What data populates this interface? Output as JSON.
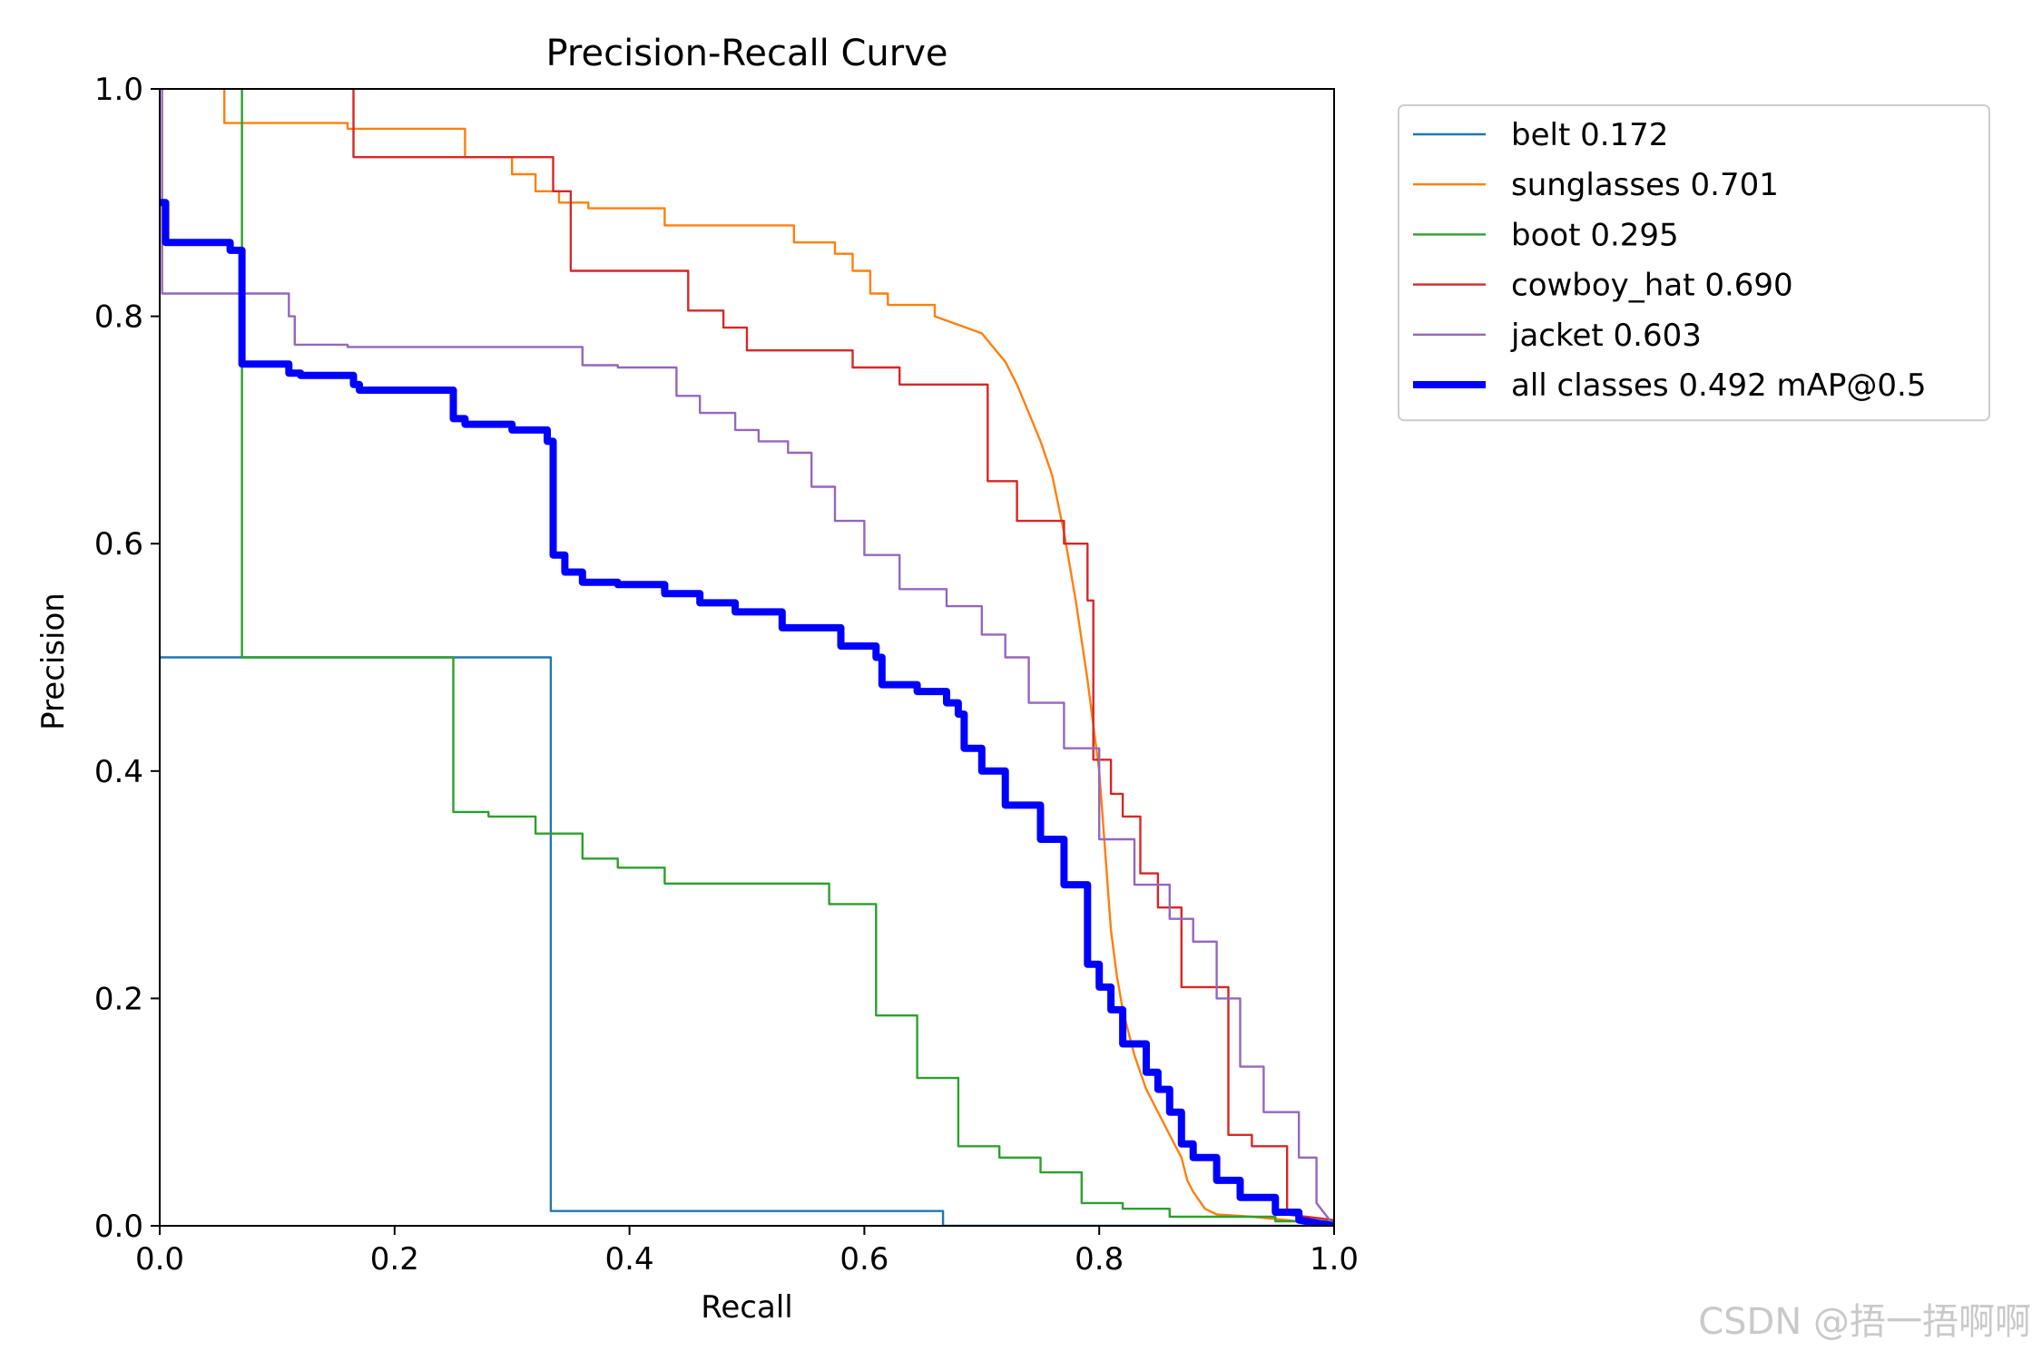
{
  "chart_data": {
    "type": "line",
    "title": "Precision-Recall Curve",
    "xlabel": "Recall",
    "ylabel": "Precision",
    "xlim": [
      0,
      1
    ],
    "ylim": [
      0,
      1
    ],
    "xticks": [
      "0.0",
      "0.2",
      "0.4",
      "0.6",
      "0.8",
      "1.0"
    ],
    "yticks": [
      "0.0",
      "0.2",
      "0.4",
      "0.6",
      "0.8",
      "1.0"
    ],
    "legend_position": "outside-top-right",
    "series": [
      {
        "name": "belt 0.172",
        "color": "#1f77b4",
        "width": "thin",
        "x": [
          0,
          0.333,
          0.333,
          0.667,
          0.667,
          1.0
        ],
        "y": [
          0.5,
          0.5,
          0.013,
          0.013,
          0.0,
          0.0
        ]
      },
      {
        "name": "sunglasses 0.701",
        "color": "#ff7f0e",
        "width": "thin",
        "x": [
          0.055,
          0.055,
          0.16,
          0.16,
          0.26,
          0.26,
          0.3,
          0.3,
          0.32,
          0.32,
          0.34,
          0.34,
          0.365,
          0.365,
          0.43,
          0.43,
          0.54,
          0.54,
          0.575,
          0.575,
          0.59,
          0.59,
          0.605,
          0.605,
          0.62,
          0.62,
          0.66,
          0.66,
          0.7,
          0.72,
          0.73,
          0.74,
          0.75,
          0.76,
          0.77,
          0.78,
          0.79,
          0.8,
          0.805,
          0.81,
          0.815,
          0.82,
          0.825,
          0.83,
          0.84,
          0.85,
          0.86,
          0.87,
          0.875,
          0.88,
          0.89,
          0.9,
          0.93,
          0.96,
          1.0
        ],
        "y": [
          1.0,
          0.97,
          0.97,
          0.965,
          0.965,
          0.94,
          0.94,
          0.925,
          0.925,
          0.91,
          0.91,
          0.9,
          0.9,
          0.895,
          0.895,
          0.88,
          0.88,
          0.865,
          0.865,
          0.855,
          0.855,
          0.84,
          0.84,
          0.82,
          0.82,
          0.81,
          0.81,
          0.8,
          0.785,
          0.76,
          0.74,
          0.715,
          0.69,
          0.66,
          0.61,
          0.55,
          0.48,
          0.4,
          0.33,
          0.26,
          0.22,
          0.19,
          0.17,
          0.15,
          0.12,
          0.1,
          0.08,
          0.06,
          0.04,
          0.03,
          0.015,
          0.01,
          0.008,
          0.005,
          0.0
        ]
      },
      {
        "name": "boot 0.295",
        "color": "#2ca02c",
        "width": "thin",
        "x": [
          0.07,
          0.07,
          0.25,
          0.25,
          0.28,
          0.28,
          0.32,
          0.32,
          0.36,
          0.36,
          0.39,
          0.39,
          0.43,
          0.43,
          0.57,
          0.57,
          0.61,
          0.61,
          0.645,
          0.645,
          0.68,
          0.68,
          0.715,
          0.715,
          0.75,
          0.75,
          0.785,
          0.785,
          0.82,
          0.82,
          0.86,
          0.86,
          0.95,
          0.95,
          1.0
        ],
        "y": [
          1.0,
          0.5,
          0.5,
          0.364,
          0.364,
          0.36,
          0.36,
          0.345,
          0.345,
          0.323,
          0.323,
          0.315,
          0.315,
          0.301,
          0.301,
          0.283,
          0.283,
          0.185,
          0.185,
          0.13,
          0.13,
          0.07,
          0.07,
          0.06,
          0.06,
          0.047,
          0.047,
          0.02,
          0.02,
          0.015,
          0.015,
          0.008,
          0.008,
          0.004,
          0.004
        ]
      },
      {
        "name": "cowboy_hat 0.690",
        "color": "#d62728",
        "width": "thin",
        "x": [
          0.165,
          0.165,
          0.17,
          0.17,
          0.335,
          0.335,
          0.35,
          0.35,
          0.37,
          0.37,
          0.45,
          0.45,
          0.48,
          0.48,
          0.5,
          0.5,
          0.59,
          0.59,
          0.63,
          0.63,
          0.66,
          0.66,
          0.705,
          0.705,
          0.73,
          0.73,
          0.77,
          0.77,
          0.79,
          0.79,
          0.795,
          0.795,
          0.81,
          0.81,
          0.82,
          0.82,
          0.835,
          0.835,
          0.85,
          0.85,
          0.87,
          0.87,
          0.91,
          0.91,
          0.93,
          0.93,
          0.96,
          0.96,
          1.0
        ],
        "y": [
          1.0,
          0.94,
          0.94,
          0.94,
          0.94,
          0.91,
          0.91,
          0.84,
          0.84,
          0.84,
          0.84,
          0.805,
          0.805,
          0.79,
          0.79,
          0.77,
          0.77,
          0.755,
          0.755,
          0.74,
          0.74,
          0.74,
          0.74,
          0.655,
          0.655,
          0.62,
          0.62,
          0.6,
          0.6,
          0.55,
          0.55,
          0.41,
          0.41,
          0.38,
          0.38,
          0.36,
          0.36,
          0.31,
          0.31,
          0.28,
          0.28,
          0.21,
          0.21,
          0.08,
          0.08,
          0.07,
          0.07,
          0.01,
          0.005
        ]
      },
      {
        "name": "jacket 0.603",
        "color": "#9467bd",
        "width": "thin",
        "x": [
          0.002,
          0.002,
          0.006,
          0.006,
          0.11,
          0.11,
          0.115,
          0.115,
          0.16,
          0.16,
          0.36,
          0.36,
          0.39,
          0.39,
          0.44,
          0.44,
          0.46,
          0.46,
          0.49,
          0.49,
          0.51,
          0.51,
          0.535,
          0.535,
          0.555,
          0.555,
          0.575,
          0.575,
          0.6,
          0.6,
          0.63,
          0.63,
          0.67,
          0.67,
          0.7,
          0.7,
          0.72,
          0.72,
          0.74,
          0.74,
          0.77,
          0.77,
          0.8,
          0.8,
          0.83,
          0.83,
          0.86,
          0.86,
          0.88,
          0.88,
          0.9,
          0.9,
          0.92,
          0.92,
          0.94,
          0.94,
          0.97,
          0.97,
          0.985,
          0.985,
          1.0
        ],
        "y": [
          1.0,
          0.82,
          0.82,
          0.82,
          0.82,
          0.8,
          0.8,
          0.775,
          0.775,
          0.773,
          0.773,
          0.757,
          0.757,
          0.755,
          0.755,
          0.73,
          0.73,
          0.715,
          0.715,
          0.7,
          0.7,
          0.69,
          0.69,
          0.68,
          0.68,
          0.65,
          0.65,
          0.62,
          0.62,
          0.59,
          0.59,
          0.56,
          0.56,
          0.545,
          0.545,
          0.52,
          0.52,
          0.5,
          0.5,
          0.46,
          0.46,
          0.42,
          0.42,
          0.34,
          0.34,
          0.3,
          0.3,
          0.27,
          0.27,
          0.25,
          0.25,
          0.2,
          0.2,
          0.14,
          0.14,
          0.1,
          0.1,
          0.06,
          0.06,
          0.02,
          0.0
        ]
      },
      {
        "name": "all classes 0.492 mAP@0.5",
        "color": "#0000ff",
        "width": "thick",
        "x": [
          0.0,
          0.005,
          0.005,
          0.06,
          0.06,
          0.07,
          0.07,
          0.11,
          0.11,
          0.12,
          0.12,
          0.165,
          0.165,
          0.17,
          0.17,
          0.25,
          0.25,
          0.26,
          0.26,
          0.3,
          0.3,
          0.33,
          0.33,
          0.335,
          0.335,
          0.345,
          0.345,
          0.36,
          0.36,
          0.39,
          0.39,
          0.43,
          0.43,
          0.46,
          0.46,
          0.49,
          0.49,
          0.53,
          0.53,
          0.58,
          0.58,
          0.61,
          0.61,
          0.615,
          0.615,
          0.645,
          0.645,
          0.67,
          0.67,
          0.68,
          0.68,
          0.685,
          0.685,
          0.7,
          0.7,
          0.72,
          0.72,
          0.75,
          0.75,
          0.77,
          0.77,
          0.79,
          0.79,
          0.8,
          0.8,
          0.81,
          0.81,
          0.82,
          0.82,
          0.84,
          0.84,
          0.85,
          0.85,
          0.86,
          0.86,
          0.87,
          0.87,
          0.88,
          0.88,
          0.9,
          0.9,
          0.92,
          0.92,
          0.95,
          0.95,
          0.97,
          0.97,
          1.0
        ],
        "y": [
          0.9,
          0.9,
          0.865,
          0.865,
          0.858,
          0.858,
          0.758,
          0.758,
          0.75,
          0.75,
          0.748,
          0.748,
          0.74,
          0.74,
          0.735,
          0.735,
          0.71,
          0.71,
          0.705,
          0.705,
          0.7,
          0.7,
          0.69,
          0.69,
          0.59,
          0.59,
          0.575,
          0.575,
          0.566,
          0.566,
          0.564,
          0.564,
          0.556,
          0.556,
          0.548,
          0.548,
          0.54,
          0.54,
          0.526,
          0.526,
          0.51,
          0.51,
          0.5,
          0.5,
          0.476,
          0.476,
          0.47,
          0.47,
          0.46,
          0.46,
          0.45,
          0.45,
          0.42,
          0.42,
          0.4,
          0.4,
          0.37,
          0.37,
          0.34,
          0.34,
          0.3,
          0.3,
          0.23,
          0.23,
          0.21,
          0.21,
          0.19,
          0.19,
          0.16,
          0.16,
          0.135,
          0.135,
          0.12,
          0.12,
          0.1,
          0.1,
          0.072,
          0.072,
          0.06,
          0.06,
          0.04,
          0.04,
          0.025,
          0.025,
          0.012,
          0.012,
          0.005,
          0.0
        ]
      }
    ]
  },
  "watermark": "CSDN @捂一捂啊啊"
}
